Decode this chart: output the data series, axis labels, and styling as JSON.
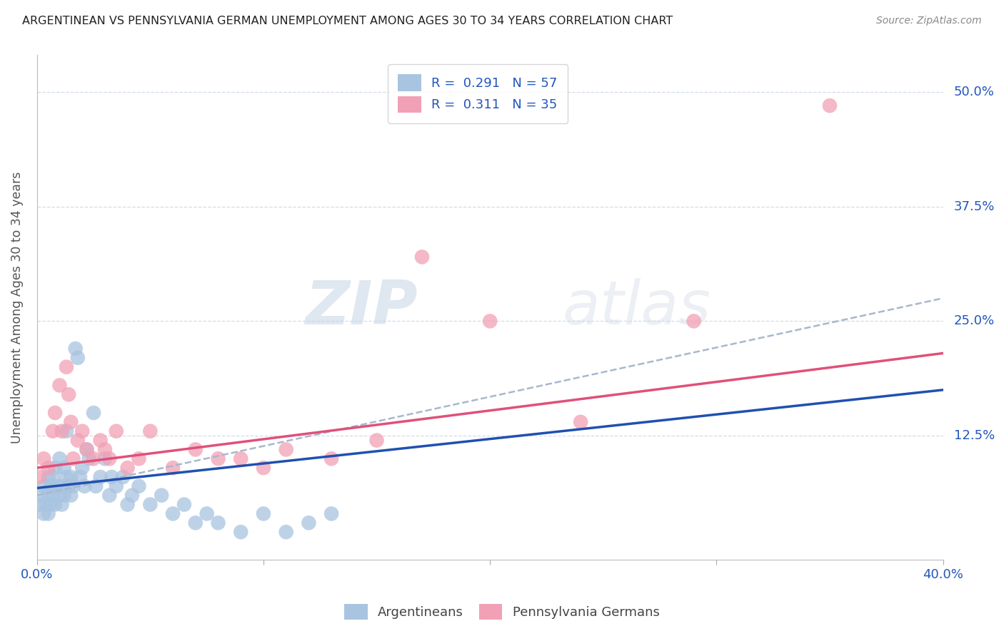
{
  "title": "ARGENTINEAN VS PENNSYLVANIA GERMAN UNEMPLOYMENT AMONG AGES 30 TO 34 YEARS CORRELATION CHART",
  "source": "Source: ZipAtlas.com",
  "ylabel": "Unemployment Among Ages 30 to 34 years",
  "ytick_labels": [
    "50.0%",
    "37.5%",
    "25.0%",
    "12.5%"
  ],
  "ytick_values": [
    0.5,
    0.375,
    0.25,
    0.125
  ],
  "xlim": [
    0.0,
    0.4
  ],
  "ylim": [
    -0.01,
    0.54
  ],
  "color_argentinean": "#a8c4e0",
  "color_penn_german": "#f2a0b5",
  "color_argentinean_line": "#2050b0",
  "color_penn_german_line": "#e0507a",
  "color_dashed_line": "#a8b8cc",
  "watermark_zip": "ZIP",
  "watermark_atlas": "atlas",
  "arg_line_start_y": 0.068,
  "arg_line_end_y": 0.175,
  "penn_line_start_y": 0.09,
  "penn_line_end_y": 0.215,
  "dash_line_start_y": 0.06,
  "dash_line_end_y": 0.275,
  "argentinean_x": [
    0.001,
    0.002,
    0.003,
    0.003,
    0.004,
    0.005,
    0.005,
    0.005,
    0.006,
    0.006,
    0.007,
    0.007,
    0.008,
    0.008,
    0.009,
    0.01,
    0.01,
    0.011,
    0.011,
    0.012,
    0.012,
    0.013,
    0.013,
    0.014,
    0.015,
    0.015,
    0.016,
    0.017,
    0.018,
    0.019,
    0.02,
    0.021,
    0.022,
    0.023,
    0.025,
    0.026,
    0.028,
    0.03,
    0.032,
    0.033,
    0.035,
    0.038,
    0.04,
    0.042,
    0.045,
    0.05,
    0.055,
    0.06,
    0.065,
    0.07,
    0.075,
    0.08,
    0.09,
    0.1,
    0.11,
    0.12,
    0.13
  ],
  "argentinean_y": [
    0.05,
    0.06,
    0.04,
    0.07,
    0.05,
    0.08,
    0.04,
    0.06,
    0.05,
    0.07,
    0.06,
    0.08,
    0.05,
    0.09,
    0.07,
    0.06,
    0.1,
    0.07,
    0.05,
    0.09,
    0.06,
    0.13,
    0.08,
    0.07,
    0.08,
    0.06,
    0.07,
    0.22,
    0.21,
    0.08,
    0.09,
    0.07,
    0.11,
    0.1,
    0.15,
    0.07,
    0.08,
    0.1,
    0.06,
    0.08,
    0.07,
    0.08,
    0.05,
    0.06,
    0.07,
    0.05,
    0.06,
    0.04,
    0.05,
    0.03,
    0.04,
    0.03,
    0.02,
    0.04,
    0.02,
    0.03,
    0.04
  ],
  "penn_german_x": [
    0.001,
    0.003,
    0.005,
    0.007,
    0.008,
    0.01,
    0.011,
    0.013,
    0.014,
    0.015,
    0.016,
    0.018,
    0.02,
    0.022,
    0.025,
    0.028,
    0.03,
    0.032,
    0.035,
    0.04,
    0.045,
    0.05,
    0.06,
    0.07,
    0.08,
    0.09,
    0.1,
    0.11,
    0.13,
    0.15,
    0.17,
    0.2,
    0.24,
    0.29,
    0.35
  ],
  "penn_german_y": [
    0.08,
    0.1,
    0.09,
    0.13,
    0.15,
    0.18,
    0.13,
    0.2,
    0.17,
    0.14,
    0.1,
    0.12,
    0.13,
    0.11,
    0.1,
    0.12,
    0.11,
    0.1,
    0.13,
    0.09,
    0.1,
    0.13,
    0.09,
    0.11,
    0.1,
    0.1,
    0.09,
    0.11,
    0.1,
    0.12,
    0.32,
    0.25,
    0.14,
    0.25,
    0.485
  ]
}
